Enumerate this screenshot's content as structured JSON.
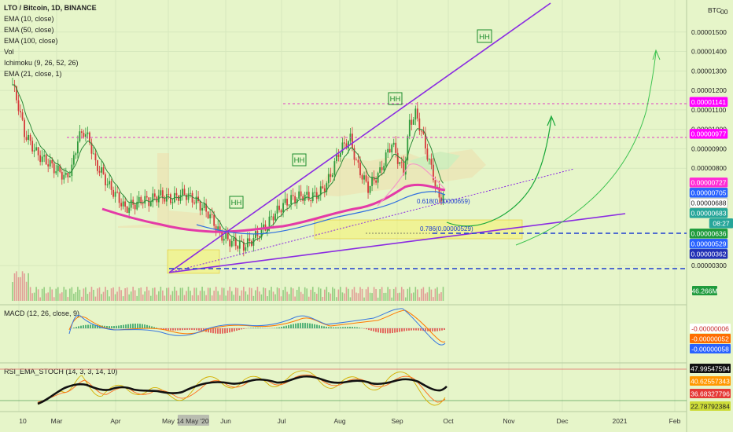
{
  "chart_data": {
    "type": "candlestick",
    "header": {
      "title": "LTO / Bitcoin, 1D, BINANCE",
      "indicators": [
        "EMA (10, close)",
        "EMA (50, close)",
        "EMA (100, close)",
        "Vol",
        "Ichimoku (9, 26, 52, 26)",
        "EMA (21, close, 1)"
      ]
    },
    "price_axis": {
      "unit": "BTC",
      "unit_extra": "00",
      "ticks": [
        {
          "label": "0.00001500",
          "value": 1.5e-05
        },
        {
          "label": "0.00001400",
          "value": 1.4e-05
        },
        {
          "label": "0.00001300",
          "value": 1.3e-05
        },
        {
          "label": "0.00001200",
          "value": 1.2e-05
        },
        {
          "label": "0.00001100",
          "value": 1.1e-05
        },
        {
          "label": "0.00001000",
          "value": 1e-05
        },
        {
          "label": "0.00000900",
          "value": 9e-06
        },
        {
          "label": "0.00000800",
          "value": 8e-06
        },
        {
          "label": "0.00000300",
          "value": 3e-06
        }
      ],
      "ylim": [
        2.5e-06,
        1.61e-05
      ]
    },
    "price_tags": [
      {
        "label": "0.00001141",
        "value": 1.141e-05,
        "color": "#ff00ff",
        "text_color": "#ffffff"
      },
      {
        "label": "0.00000977",
        "value": 9.77e-06,
        "color": "#ff00ff",
        "text_color": "#ffffff"
      },
      {
        "label": "0.00000727",
        "value": 7.27e-06,
        "color": "#ff2bd6",
        "text_color": "#ffffff"
      },
      {
        "label": "0.00000705",
        "value": 7.05e-06,
        "color": "#2962ff",
        "text_color": "#ffffff"
      },
      {
        "label": "0.00000688",
        "value": 6.88e-06,
        "color": "#ffffff",
        "text_color": "#222222"
      },
      {
        "label": "0.00000683",
        "value": 6.83e-06,
        "color": "#26a69a",
        "text_color": "#ffffff"
      },
      {
        "label": "08:27",
        "value": 6.68e-06,
        "color": "#26a69a",
        "text_color": "#ffffff"
      },
      {
        "label": "0.00000636",
        "value": 6.36e-06,
        "color": "#1f9b3d",
        "text_color": "#ffffff"
      },
      {
        "label": "0.00000529",
        "value": 5.29e-06,
        "color": "#2962ff",
        "text_color": "#ffffff"
      },
      {
        "label": "0.00000362",
        "value": 3.62e-06,
        "color": "#2130b5",
        "text_color": "#ffffff"
      }
    ],
    "volume_tag": {
      "label": "46.266M",
      "color": "#1f9b3d"
    },
    "time_axis": {
      "labels": [
        "10",
        "Mar",
        "Apr",
        "May",
        "14 May '20",
        "Jun",
        "Jul",
        "Aug",
        "Sep",
        "Oct",
        "Nov",
        "Dec",
        "2021",
        "Feb"
      ],
      "highlight": "14 May '20"
    },
    "annotations": {
      "pattern_labels": [
        "HH",
        "HH",
        "HH",
        "HH"
      ],
      "fib_labels": [
        "0.618(0.00000659)",
        "0.786(0.00000529)"
      ]
    },
    "close_series": [
      1.23e-05,
      1.12e-05,
      9.8e-06,
      9.3e-06,
      8.8e-06,
      8.5e-06,
      8.3e-06,
      8e-06,
      7.8e-06,
      7.5e-06,
      8e-06,
      9.5e-06,
      9.9e-06,
      9.4e-06,
      8.2e-06,
      7.8e-06,
      7.2e-06,
      6.8e-06,
      6.4e-06,
      5.9e-06,
      6.1e-06,
      6.2e-06,
      6.4e-06,
      6.3e-06,
      6.5e-06,
      6.6e-06,
      6.5e-06,
      6.4e-06,
      6.6e-06,
      6.7e-06,
      6.5e-06,
      6.3e-06,
      6e-06,
      5.7e-06,
      5.2e-06,
      4.6e-06,
      4.4e-06,
      4.2e-06,
      4.1e-06,
      4e-06,
      4.2e-06,
      4.5e-06,
      4.8e-06,
      5.1e-06,
      5.6e-06,
      5.9e-06,
      6.2e-06,
      6.4e-06,
      6.5e-06,
      6.6e-06,
      6.5e-06,
      6.6e-06,
      6.8e-06,
      7.2e-06,
      7.9e-06,
      8.8e-06,
      9.2e-06,
      9.5e-06,
      8.3e-06,
      7.6e-06,
      7e-06,
      7.4e-06,
      7.8e-06,
      8.6e-06,
      9.3e-06,
      8.5e-06,
      7.8e-06,
      1.03e-05,
      1.08e-05,
      9.9e-06,
      8.7e-06,
      7.6e-06,
      6.4e-06,
      6.9e-06
    ],
    "macd": {
      "label": "MACD (12, 26, close, 9)",
      "tags": [
        {
          "label": "-0.00000006",
          "color": "#ffffff",
          "text_color": "#c62828"
        },
        {
          "label": "-0.00000052",
          "color": "#ff6d00",
          "text_color": "#ffffff"
        },
        {
          "label": "-0.00000058",
          "color": "#2962ff",
          "text_color": "#ffffff"
        }
      ]
    },
    "rsi": {
      "label": "RSI_EMA_STOCH (14, 3, 3, 14, 10)",
      "tags": [
        {
          "label": "47.99547594",
          "color": "#111111",
          "text_color": "#ffffff"
        },
        {
          "label": "40.62557343",
          "color": "#ff9800",
          "text_color": "#ffffff"
        },
        {
          "label": "36.68327796",
          "color": "#e53935",
          "text_color": "#ffffff"
        },
        {
          "label": "22.78792384",
          "color": "#cddc39",
          "text_color": "#222222"
        }
      ]
    }
  }
}
